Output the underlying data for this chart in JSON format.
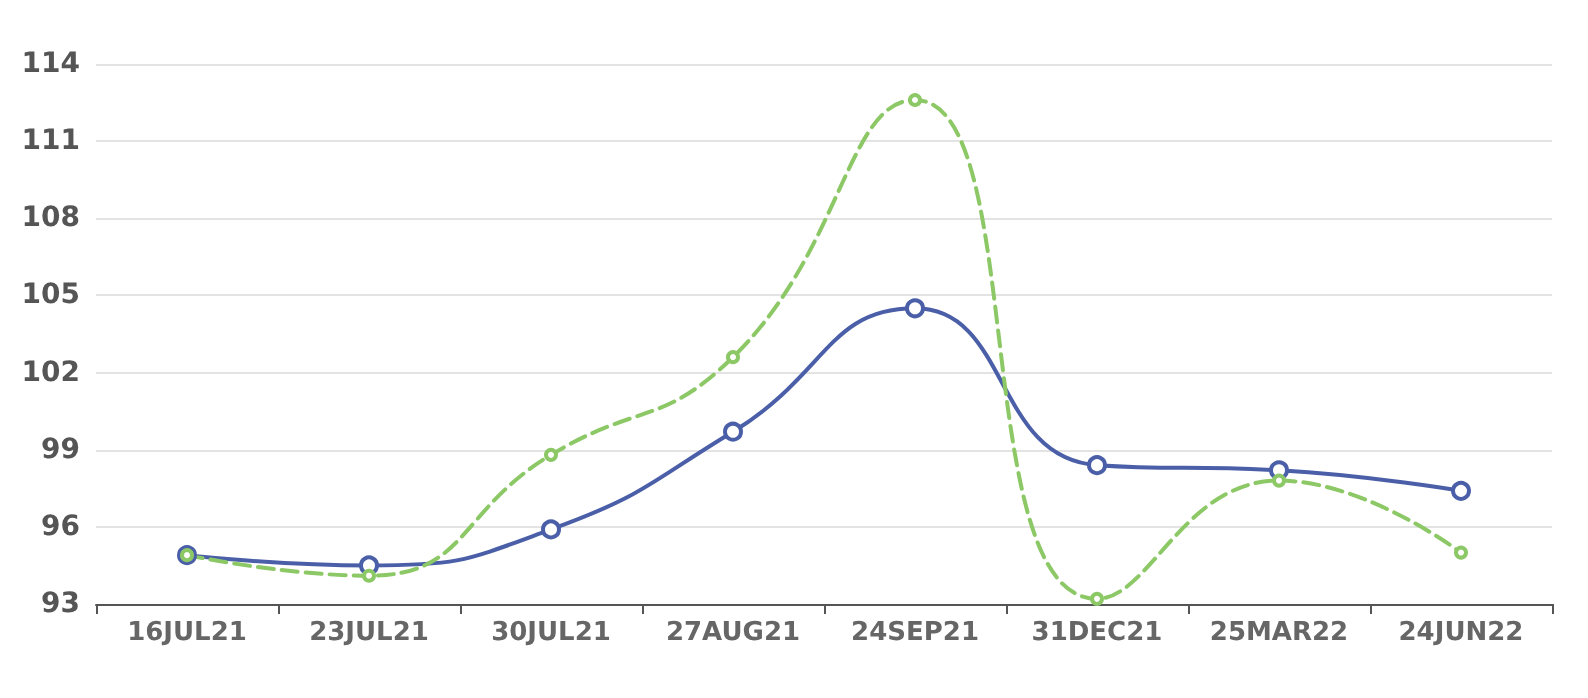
{
  "chart_data": {
    "type": "line",
    "categories": [
      "16JUL21",
      "23JUL21",
      "30JUL21",
      "27AUG21",
      "24SEP21",
      "31DEC21",
      "25MAR22",
      "24JUN22"
    ],
    "series": [
      {
        "color": "#4a5fa8",
        "line_style": "solid",
        "values": [
          94.9,
          94.5,
          95.9,
          99.7,
          104.5,
          98.4,
          98.2,
          97.4
        ]
      },
      {
        "color": "#8cc866",
        "line_style": "dashed",
        "values": [
          94.9,
          94.1,
          98.8,
          102.6,
          112.6,
          93.2,
          97.8,
          95.0
        ]
      }
    ],
    "ylim": [
      93,
      114
    ],
    "yticks": [
      93,
      96,
      99,
      102,
      105,
      108,
      111,
      114
    ],
    "grid": "y",
    "marker": "circle"
  }
}
